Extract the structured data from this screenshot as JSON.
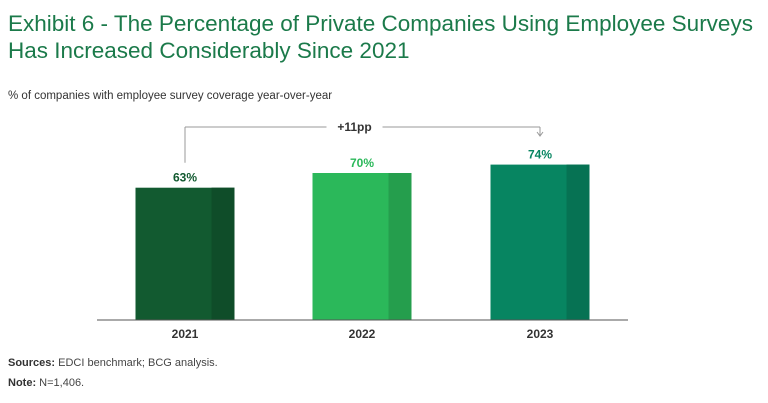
{
  "title": {
    "line1": "Exhibit 6 - The Percentage of Private Companies Using Employee Surveys",
    "line2": "Has Increased Considerably Since 2021"
  },
  "chart_data": {
    "type": "bar",
    "title": "Exhibit 6 - The Percentage of Private Companies Using Employee Surveys Has Increased Considerably Since 2021",
    "subtitle": "% of companies with employee survey coverage year-over-year",
    "categories": [
      "2021",
      "2022",
      "2023"
    ],
    "values": [
      63,
      70,
      74
    ],
    "value_labels": [
      "63%",
      "70%",
      "74%"
    ],
    "unit": "%",
    "bar_colors": [
      "#125a30",
      "#2bb85a",
      "#078561"
    ],
    "label_colors": [
      "#125a30",
      "#2bb85a",
      "#078561"
    ],
    "annotation": {
      "text": "+11pp",
      "from": "2021",
      "to": "2023"
    },
    "ylim": [
      0,
      100
    ],
    "grid": false,
    "legend": "none"
  },
  "footer": {
    "sources_label": "Sources:",
    "sources_text": " EDCI benchmark; BCG analysis.",
    "note_label": "Note:",
    "note_text": " N=1,406."
  }
}
